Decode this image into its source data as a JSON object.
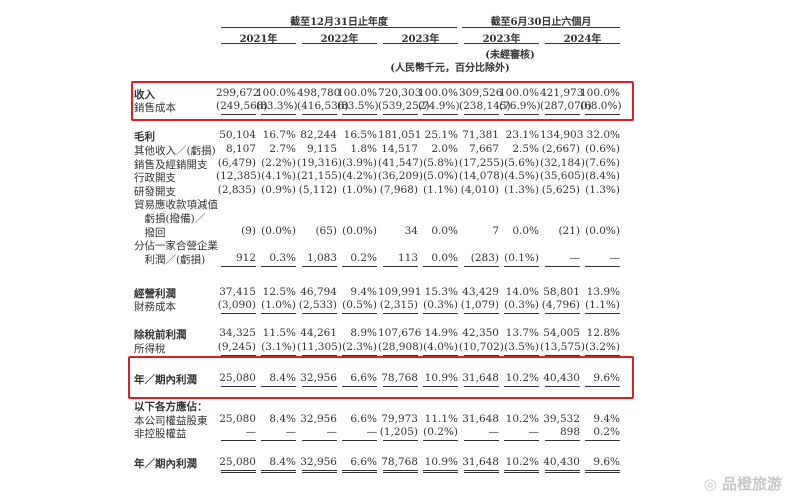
{
  "header": {
    "group_annual": "截至12月31日止年度",
    "group_interim": "截至6月30日止六個月",
    "years": [
      "2021年",
      "2022年",
      "2023年",
      "2023年",
      "2024年"
    ],
    "unaudited": "(未經審核)",
    "unit_note": "(人民幣千元，百分比除外)"
  },
  "rows": [
    {
      "label": "收入",
      "values": [
        "299,672",
        "100.0%",
        "498,780",
        "100.0%",
        "720,303",
        "100.0%",
        "309,526",
        "100.0%",
        "421,973",
        "100.0%"
      ]
    },
    {
      "label": "銷售成本",
      "values": [
        "(249,568)",
        "(83.3%)",
        "(416,536)",
        "(83.5%)",
        "(539,252)",
        "(74.9%)",
        "(238,145)",
        "(76.9%)",
        "(287,070)",
        "(68.0%)"
      ]
    },
    {
      "label": "毛利",
      "values": [
        "50,104",
        "16.7%",
        "82,244",
        "16.5%",
        "181,051",
        "25.1%",
        "71,381",
        "23.1%",
        "134,903",
        "32.0%"
      ]
    },
    {
      "label": "其他收入／(虧損)",
      "values": [
        "8,107",
        "2.7%",
        "9,115",
        "1.8%",
        "14,517",
        "2.0%",
        "7,667",
        "2.5%",
        "(2,667)",
        "(0.6%)"
      ]
    },
    {
      "label": "銷售及經銷開支",
      "values": [
        "(6,479)",
        "(2.2%)",
        "(19,316)",
        "(3.9%)",
        "(41,547)",
        "(5.8%)",
        "(17,255)",
        "(5.6%)",
        "(32,184)",
        "(7.6%)"
      ]
    },
    {
      "label": "行政開支",
      "values": [
        "(12,385)",
        "(4.1%)",
        "(21,155)",
        "(4.2%)",
        "(36,209)",
        "(5.0%)",
        "(14,078)",
        "(4.5%)",
        "(35,605)",
        "(8.4%)"
      ]
    },
    {
      "label": "研發開支",
      "values": [
        "(2,835)",
        "(0.9%)",
        "(5,112)",
        "(1.0%)",
        "(7,968)",
        "(1.1%)",
        "(4,010)",
        "(1.3%)",
        "(5,625)",
        "(1.3%)"
      ]
    },
    {
      "label": "貿易應收款項減值",
      "values": []
    },
    {
      "label": "　虧損(撥備)／",
      "values": []
    },
    {
      "label": "　撥回",
      "values": [
        "(9)",
        "(0.0%)",
        "(65)",
        "(0.0%)",
        "34",
        "0.0%",
        "7",
        "0.0%",
        "(21)",
        "(0.0%)"
      ]
    },
    {
      "label": "分佔一家合營企業",
      "values": []
    },
    {
      "label": "　利潤／(虧損)",
      "values": [
        "912",
        "0.3%",
        "1,083",
        "0.2%",
        "113",
        "0.0%",
        "(283)",
        "(0.1%)",
        "—",
        "—"
      ]
    },
    {
      "label": "經營利潤",
      "values": [
        "37,415",
        "12.5%",
        "46,794",
        "9.4%",
        "109,991",
        "15.3%",
        "43,429",
        "14.0%",
        "58,801",
        "13.9%"
      ]
    },
    {
      "label": "財務成本",
      "values": [
        "(3,090)",
        "(1.0%)",
        "(2,533)",
        "(0.5%)",
        "(2,315)",
        "(0.3%)",
        "(1,079)",
        "(0.3%)",
        "(4,796)",
        "(1.1%)"
      ]
    },
    {
      "label": "除稅前利潤",
      "values": [
        "34,325",
        "11.5%",
        "44,261",
        "8.9%",
        "107,676",
        "14.9%",
        "42,350",
        "13.7%",
        "54,005",
        "12.8%"
      ]
    },
    {
      "label": "所得稅",
      "values": [
        "(9,245)",
        "(3.1%)",
        "(11,305)",
        "(2.3%)",
        "(28,908)",
        "(4.0%)",
        "(10,702)",
        "(3.5%)",
        "(13,575)",
        "(3.2%)"
      ]
    },
    {
      "label": "年／期內利潤",
      "values": [
        "25,080",
        "8.4%",
        "32,956",
        "6.6%",
        "78,768",
        "10.9%",
        "31,648",
        "10.2%",
        "40,430",
        "9.6%"
      ]
    },
    {
      "label": "以下各方應佔：",
      "values": []
    },
    {
      "label": "本公司權益股東",
      "values": [
        "25,080",
        "8.4%",
        "32,956",
        "6.6%",
        "79,973",
        "11.1%",
        "31,648",
        "10.2%",
        "39,532",
        "9.4%"
      ]
    },
    {
      "label": "非控股權益",
      "values": [
        "—",
        "—",
        "—",
        "—",
        "(1,205)",
        "(0.2%)",
        "—",
        "—",
        "898",
        "0.2%"
      ]
    },
    {
      "label": "年／期內利潤",
      "values": [
        "25,080",
        "8.4%",
        "32,956",
        "6.6%",
        "78,768",
        "10.9%",
        "31,648",
        "10.2%",
        "40,430",
        "9.6%"
      ]
    }
  ],
  "highlight_color": "#e02020",
  "watermark": "品橙旅游"
}
